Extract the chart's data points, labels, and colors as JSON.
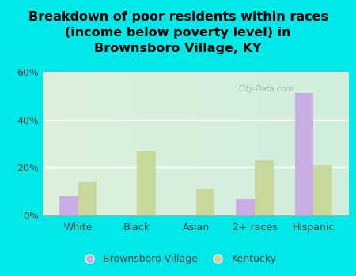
{
  "title": "Breakdown of poor residents within races\n(income below poverty level) in\nBrownsboro Village, KY",
  "categories": [
    "White",
    "Black",
    "Asian",
    "2+ races",
    "Hispanic"
  ],
  "brownsboro_values": [
    8,
    0,
    0,
    7,
    51
  ],
  "kentucky_values": [
    14,
    27,
    11,
    23,
    21
  ],
  "brownsboro_color": "#c9aee5",
  "kentucky_color": "#c8d89a",
  "background_outer": "#00e8e8",
  "background_plot_left": "#ddeedd",
  "background_plot_right": "#cceedd",
  "ylim": [
    0,
    60
  ],
  "yticks": [
    0,
    20,
    40,
    60
  ],
  "ytick_labels": [
    "0%",
    "20%",
    "40%",
    "60%"
  ],
  "bar_width": 0.32,
  "legend_labels": [
    "Brownsboro Village",
    "Kentucky"
  ],
  "title_fontsize": 11.5,
  "tick_fontsize": 9,
  "legend_fontsize": 9,
  "watermark": "City-Data.com"
}
